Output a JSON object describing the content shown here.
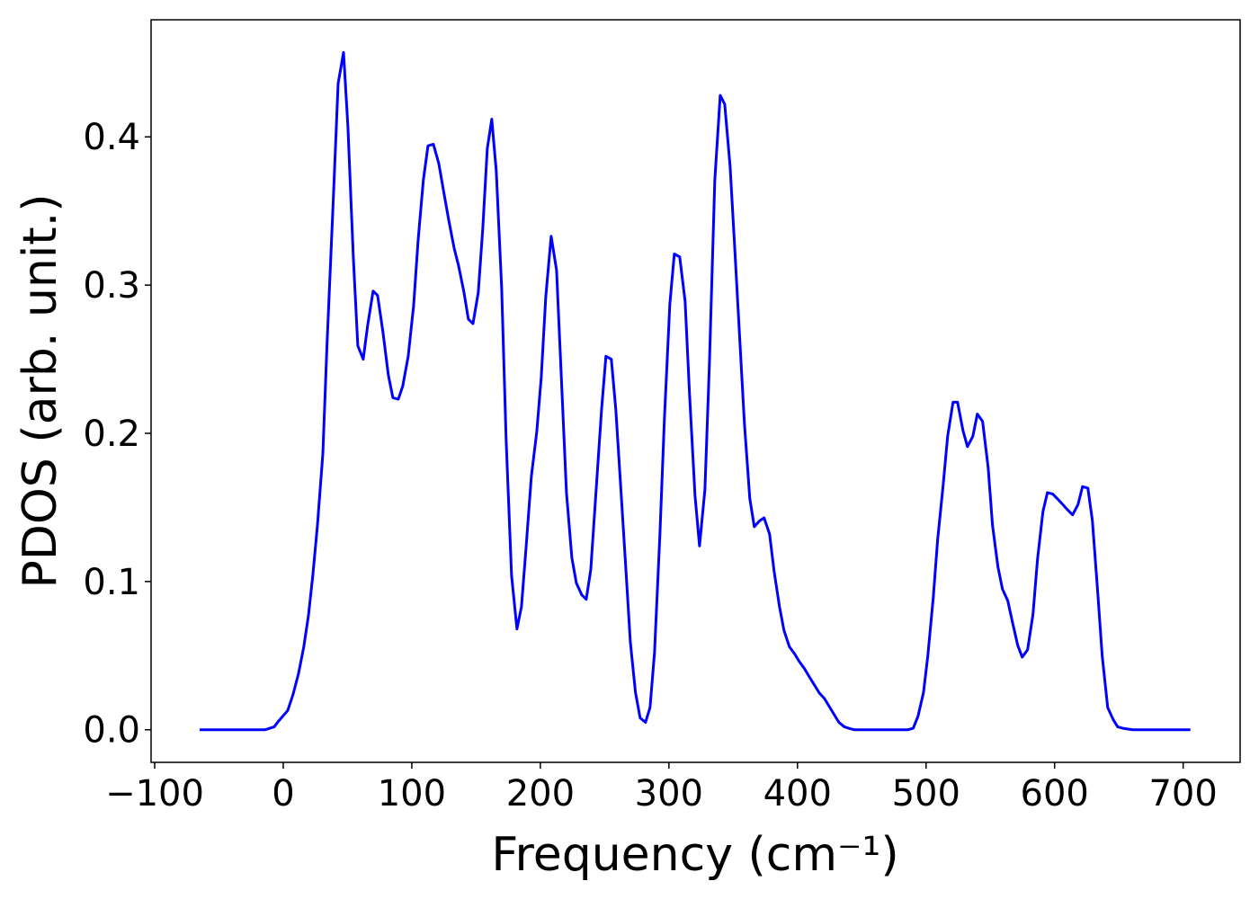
{
  "chart_data": {
    "type": "line",
    "x_label": "Frequency (cm⁻¹)",
    "y_label": "PDOS (arb. unit.)",
    "xlim": [
      -102.8,
      744.3
    ],
    "ylim": [
      -0.022,
      0.479
    ],
    "xticks": [
      {
        "value": -100,
        "label": "−100"
      },
      0,
      100,
      200,
      300,
      400,
      500,
      600,
      700
    ],
    "yticks": [
      {
        "value": 0,
        "label": "0.0"
      },
      0.1,
      0.2,
      0.3,
      0.4
    ],
    "series": [
      {
        "color": "#0000ff",
        "x": [
          -65,
          -14,
          -10.5,
          -7,
          -3.5,
          3.5,
          7.7,
          11.9,
          16,
          19.6,
          23,
          26.6,
          30.8,
          34,
          39,
          42.7,
          46.9,
          50.3,
          54.5,
          58,
          62.2,
          65.7,
          69.9,
          73.4,
          77.6,
          81.8,
          85.3,
          89.5,
          93,
          97.2,
          101.4,
          104.9,
          109,
          112.6,
          116.8,
          121,
          125,
          128.7,
          132.9,
          136.4,
          140.6,
          144,
          147.6,
          151.7,
          155.2,
          158.7,
          162.2,
          165.7,
          169.9,
          173.4,
          177.6,
          181.8,
          185.3,
          188.8,
          193,
          197.2,
          200.7,
          204.2,
          208.4,
          212.6,
          216,
          220.3,
          224.5,
          228,
          232.2,
          235.7,
          239.2,
          243.4,
          247.6,
          251,
          255.2,
          258.7,
          262.2,
          266.4,
          270,
          274,
          277.6,
          281.8,
          285.3,
          288.8,
          293,
          296.5,
          300.7,
          304.2,
          308.4,
          312.6,
          316,
          320.3,
          323.8,
          328,
          331.5,
          335.7,
          339.9,
          343.4,
          347.6,
          351,
          355.2,
          358.7,
          362.9,
          366.4,
          370.6,
          374,
          378.3,
          381.8,
          386,
          389.5,
          393.7,
          397.9,
          401.4,
          405.6,
          409,
          413.3,
          416.8,
          421,
          424.5,
          428.7,
          432.2,
          436.4,
          439.9,
          444,
          486,
          490,
          493.7,
          498,
          501.4,
          505.6,
          509,
          513.3,
          516.8,
          521,
          524.5,
          528.7,
          532.2,
          536.4,
          539.9,
          544,
          548.3,
          551.7,
          555.9,
          559.4,
          563.6,
          567.1,
          571.3,
          574.8,
          579,
          583.2,
          586.7,
          590.9,
          594.4,
          598.6,
          602,
          606.3,
          610.5,
          614,
          618.2,
          621.7,
          625.9,
          629.4,
          633.6,
          637,
          641.3,
          645.5,
          649,
          653.1,
          660.8,
          705.6
        ],
        "values": [
          0,
          0,
          0.001,
          0.002,
          0.006,
          0.013,
          0.024,
          0.038,
          0.056,
          0.077,
          0.104,
          0.138,
          0.186,
          0.259,
          0.359,
          0.436,
          0.457,
          0.407,
          0.319,
          0.259,
          0.25,
          0.273,
          0.296,
          0.293,
          0.268,
          0.239,
          0.224,
          0.223,
          0.232,
          0.252,
          0.286,
          0.33,
          0.371,
          0.394,
          0.395,
          0.382,
          0.362,
          0.344,
          0.325,
          0.313,
          0.295,
          0.277,
          0.274,
          0.295,
          0.338,
          0.392,
          0.412,
          0.377,
          0.298,
          0.195,
          0.104,
          0.068,
          0.083,
          0.122,
          0.171,
          0.201,
          0.238,
          0.292,
          0.333,
          0.31,
          0.244,
          0.16,
          0.116,
          0.099,
          0.091,
          0.088,
          0.108,
          0.162,
          0.216,
          0.252,
          0.25,
          0.216,
          0.168,
          0.11,
          0.059,
          0.025,
          0.008,
          0.005,
          0.015,
          0.052,
          0.132,
          0.21,
          0.287,
          0.321,
          0.319,
          0.289,
          0.227,
          0.158,
          0.124,
          0.162,
          0.247,
          0.371,
          0.428,
          0.422,
          0.38,
          0.328,
          0.262,
          0.207,
          0.156,
          0.137,
          0.141,
          0.143,
          0.132,
          0.107,
          0.083,
          0.067,
          0.056,
          0.051,
          0.046,
          0.041,
          0.036,
          0.03,
          0.025,
          0.021,
          0.016,
          0.01,
          0.005,
          0.002,
          0.001,
          0,
          0,
          0.001,
          0.009,
          0.025,
          0.05,
          0.089,
          0.128,
          0.165,
          0.198,
          0.221,
          0.221,
          0.202,
          0.191,
          0.198,
          0.213,
          0.208,
          0.177,
          0.138,
          0.11,
          0.095,
          0.087,
          0.073,
          0.057,
          0.049,
          0.054,
          0.078,
          0.115,
          0.147,
          0.16,
          0.159,
          0.156,
          0.152,
          0.148,
          0.145,
          0.152,
          0.164,
          0.163,
          0.141,
          0.092,
          0.05,
          0.015,
          0.007,
          0.002,
          0.001,
          0,
          0
        ]
      }
    ]
  }
}
